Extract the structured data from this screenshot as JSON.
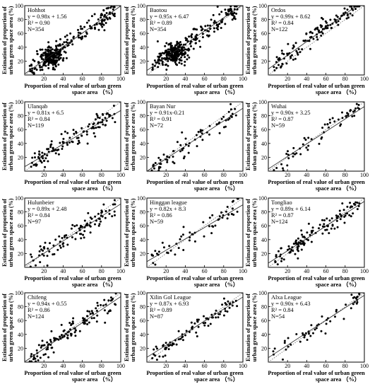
{
  "figure": {
    "xlabel_line1": "Proportion of real value of urban green",
    "xlabel_line2": "space area （%）",
    "ylabel_line1": "Estimation of proportion of",
    "ylabel_line2": "urban green space area (%)"
  },
  "chart_data": [
    {
      "type": "scatter",
      "name": "Hohhot",
      "equation": "y = 0.98x + 1.56",
      "r2": "R² = 0.90",
      "n": "N=354",
      "slope": 0.98,
      "intercept": 1.56,
      "n_points": 354,
      "cluster": [
        28,
        26
      ],
      "xlim": [
        0,
        100
      ],
      "ylim": [
        0,
        100
      ],
      "xticks": [
        20,
        40,
        60,
        80,
        100
      ],
      "yticks": [
        20,
        40,
        60,
        80,
        100
      ],
      "grid": false
    },
    {
      "type": "scatter",
      "name": "Baotou",
      "equation": "y = 0.95x + 6.47",
      "r2": "R² = 0.89",
      "n": "N=354",
      "slope": 0.95,
      "intercept": 6.47,
      "n_points": 354,
      "cluster": [
        28,
        30
      ],
      "xlim": [
        0,
        100
      ],
      "ylim": [
        0,
        100
      ],
      "xticks": [
        20,
        40,
        60,
        80,
        100
      ],
      "yticks": [
        20,
        40,
        60,
        80,
        100
      ],
      "grid": false
    },
    {
      "type": "scatter",
      "name": "Ordos",
      "equation": "y = 0.99x + 8.62",
      "r2": "R² = 0.84",
      "n": "N=122",
      "slope": 0.99,
      "intercept": 8.62,
      "n_points": 122,
      "cluster": null,
      "xlim": [
        0,
        100
      ],
      "ylim": [
        0,
        100
      ],
      "xticks": [
        20,
        40,
        60,
        80,
        100
      ],
      "yticks": [
        20,
        40,
        60,
        80,
        100
      ],
      "grid": false
    },
    {
      "type": "scatter",
      "name": "Ulanqab",
      "equation": "y = 0.81x + 6.5",
      "r2": "R² = 0.84",
      "n": "N=119",
      "slope": 0.81,
      "intercept": 6.5,
      "n_points": 119,
      "cluster": null,
      "xlim": [
        0,
        100
      ],
      "ylim": [
        0,
        100
      ],
      "xticks": [
        20,
        40,
        60,
        80,
        100
      ],
      "yticks": [
        20,
        40,
        60,
        80,
        100
      ],
      "grid": false
    },
    {
      "type": "scatter",
      "name": "Bayan Nur",
      "equation": "y = 0.91x-0.21",
      "r2": "R² = 0.91",
      "n": "N=72",
      "slope": 0.91,
      "intercept": -0.21,
      "n_points": 72,
      "cluster": null,
      "xlim": [
        0,
        100
      ],
      "ylim": [
        0,
        100
      ],
      "xticks": [
        20,
        40,
        60,
        80,
        100
      ],
      "yticks": [
        20,
        40,
        60,
        80,
        100
      ],
      "grid": false
    },
    {
      "type": "scatter",
      "name": "Wuhai",
      "equation": "y = 0.90x + 3.25",
      "r2": "R² = 0.87",
      "n": "N=59",
      "slope": 0.9,
      "intercept": 3.25,
      "n_points": 59,
      "cluster": null,
      "xlim": [
        0,
        100
      ],
      "ylim": [
        0,
        100
      ],
      "xticks": [
        20,
        40,
        60,
        80,
        100
      ],
      "yticks": [
        20,
        40,
        60,
        80,
        100
      ],
      "grid": false
    },
    {
      "type": "scatter",
      "name": "Hulunbeier",
      "equation": "y = 0.89x + 2.48",
      "r2": "R² = 0.84",
      "n": "N=97",
      "slope": 0.89,
      "intercept": 2.48,
      "n_points": 97,
      "cluster": null,
      "xlim": [
        0,
        100
      ],
      "ylim": [
        0,
        100
      ],
      "xticks": [
        20,
        40,
        60,
        80,
        100
      ],
      "yticks": [
        20,
        40,
        60,
        80,
        100
      ],
      "grid": false
    },
    {
      "type": "scatter",
      "name": "Hinggan league",
      "equation": "y = 0.82x + 8.3",
      "r2": "R² = 0.86",
      "n": "N=59",
      "slope": 0.82,
      "intercept": 8.3,
      "n_points": 59,
      "cluster": null,
      "xlim": [
        0,
        100
      ],
      "ylim": [
        0,
        100
      ],
      "xticks": [
        20,
        40,
        60,
        80,
        100
      ],
      "yticks": [
        20,
        40,
        60,
        80,
        100
      ],
      "grid": false
    },
    {
      "type": "scatter",
      "name": "Tongliao",
      "equation": "y = 0.89x + 6.14",
      "r2": "R² = 0.87",
      "n": "N=124",
      "slope": 0.89,
      "intercept": 6.14,
      "n_points": 124,
      "cluster": null,
      "xlim": [
        0,
        100
      ],
      "ylim": [
        0,
        100
      ],
      "xticks": [
        20,
        40,
        60,
        80,
        100
      ],
      "yticks": [
        20,
        40,
        60,
        80,
        100
      ],
      "grid": false
    },
    {
      "type": "scatter",
      "name": "Chifeng",
      "equation": "y = 0.94x + 0.55",
      "r2": "R² = 0.86",
      "n": "N=124",
      "slope": 0.94,
      "intercept": 0.55,
      "n_points": 124,
      "cluster": null,
      "xlim": [
        0,
        100
      ],
      "ylim": [
        0,
        100
      ],
      "xticks": [
        20,
        40,
        60,
        80,
        100
      ],
      "yticks": [
        20,
        40,
        60,
        80,
        100
      ],
      "grid": false
    },
    {
      "type": "scatter",
      "name": "Xilin Gol League",
      "equation": "y = 0.87x + 6.93",
      "r2": "R² = 0.89",
      "n": "N=87",
      "slope": 0.87,
      "intercept": 6.93,
      "n_points": 87,
      "cluster": null,
      "xlim": [
        0,
        100
      ],
      "ylim": [
        0,
        100
      ],
      "xticks": [
        20,
        40,
        60,
        80,
        100
      ],
      "yticks": [
        20,
        40,
        60,
        80,
        100
      ],
      "grid": false
    },
    {
      "type": "scatter",
      "name": "Alxa League",
      "equation": "y = 0.90x + 6.43",
      "r2": "R² = 0.84",
      "n": "N=54",
      "slope": 0.9,
      "intercept": 6.43,
      "n_points": 54,
      "cluster": null,
      "xlim": [
        0,
        100
      ],
      "ylim": [
        0,
        100
      ],
      "xticks": [
        20,
        40,
        60,
        80,
        100
      ],
      "yticks": [
        20,
        40,
        60,
        80,
        100
      ],
      "grid": false
    }
  ]
}
